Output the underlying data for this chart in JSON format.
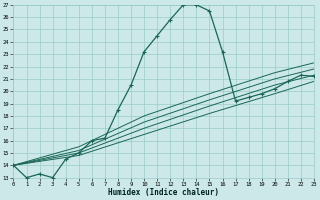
{
  "xlabel": "Humidex (Indice chaleur)",
  "bg_color": "#cce8e8",
  "grid_color": "#99cccc",
  "line_color": "#1a6655",
  "xlim": [
    0,
    23
  ],
  "ylim": [
    13,
    27
  ],
  "xticks": [
    0,
    1,
    2,
    3,
    4,
    5,
    6,
    7,
    8,
    9,
    10,
    11,
    12,
    13,
    14,
    15,
    16,
    17,
    18,
    19,
    20,
    21,
    22,
    23
  ],
  "yticks": [
    13,
    14,
    15,
    16,
    17,
    18,
    19,
    20,
    21,
    22,
    23,
    24,
    25,
    26,
    27
  ],
  "main_x": [
    0,
    1,
    2,
    3,
    4,
    5,
    6,
    7,
    8,
    9,
    10,
    11,
    12,
    13,
    14,
    15,
    16,
    17,
    18,
    19,
    20,
    21,
    22,
    23
  ],
  "main_y": [
    14,
    13,
    13.3,
    13,
    14.5,
    15,
    16,
    16.2,
    18.5,
    20.5,
    23.2,
    24.5,
    25.8,
    27.0,
    27.0,
    26.5,
    23.2,
    19.2,
    19.5,
    19.8,
    20.2,
    20.8,
    21.3,
    21.2
  ],
  "ref_lines": [
    {
      "x": [
        0,
        5,
        10,
        15,
        20,
        23
      ],
      "y": [
        14.0,
        14.8,
        16.5,
        18.2,
        19.8,
        20.8
      ]
    },
    {
      "x": [
        0,
        5,
        10,
        15,
        20,
        23
      ],
      "y": [
        14.0,
        15.0,
        17.0,
        18.8,
        20.5,
        21.3
      ]
    },
    {
      "x": [
        0,
        5,
        10,
        15,
        20,
        23
      ],
      "y": [
        14.0,
        15.2,
        17.5,
        19.3,
        21.0,
        21.8
      ]
    },
    {
      "x": [
        0,
        5,
        10,
        15,
        20,
        23
      ],
      "y": [
        14.0,
        15.5,
        18.0,
        19.8,
        21.5,
        22.3
      ]
    }
  ]
}
